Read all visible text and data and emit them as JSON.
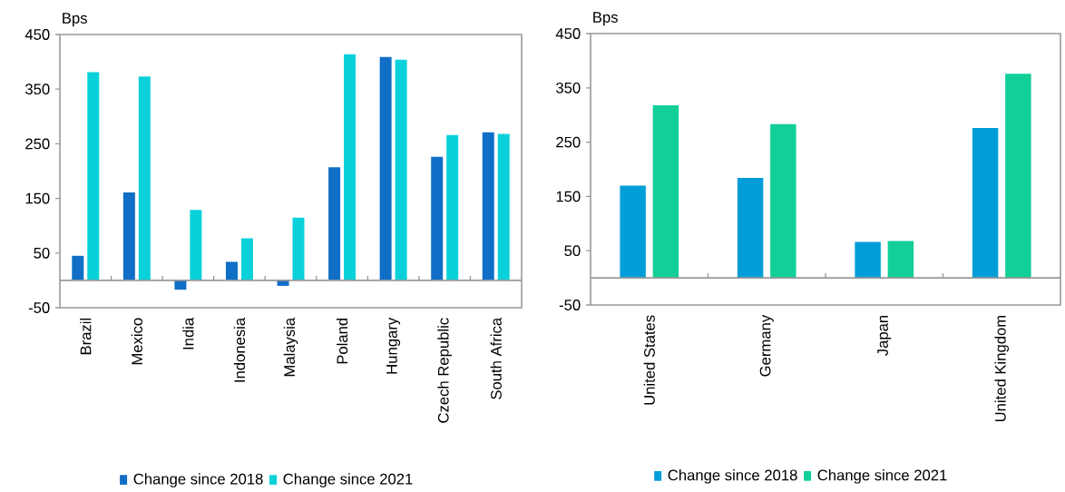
{
  "chart_data": [
    {
      "type": "bar",
      "ylabel": "Bps",
      "categories": [
        "Brazil",
        "Mexico",
        "India",
        "Indonesia",
        "Malaysia",
        "Poland",
        "Hungary",
        "Czech Republic",
        "South Africa"
      ],
      "series": [
        {
          "name": "Change since 2018",
          "color": "#106ec6",
          "values": [
            45,
            161,
            -17,
            34,
            -10,
            207,
            409,
            226,
            271
          ]
        },
        {
          "name": "Change since 2021",
          "color": "#0ad1d9",
          "values": [
            381,
            373,
            129,
            77,
            115,
            414,
            404,
            266,
            268
          ]
        }
      ],
      "ylim": [
        -50,
        450
      ],
      "yticks": [
        -50,
        50,
        150,
        250,
        350,
        450
      ],
      "legend": "bottom"
    },
    {
      "type": "bar",
      "ylabel": "Bps",
      "categories": [
        "United States",
        "Germany",
        "Japan",
        "United Kingdom"
      ],
      "series": [
        {
          "name": "Change since 2018",
          "color": "#009ed8",
          "values": [
            170,
            184,
            66,
            276
          ]
        },
        {
          "name": "Change since 2021",
          "color": "#12cf98",
          "values": [
            318,
            283,
            68,
            376
          ]
        }
      ],
      "ylim": [
        -50,
        450
      ],
      "yticks": [
        -50,
        50,
        150,
        250,
        350,
        450
      ],
      "legend": "bottom"
    }
  ]
}
